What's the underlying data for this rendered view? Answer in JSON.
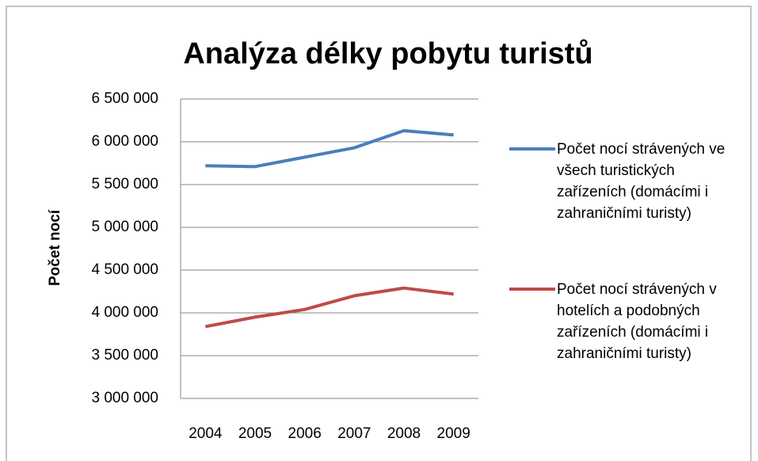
{
  "chart_data": {
    "type": "line",
    "title": "Analýza délky pobytu turistů",
    "y_label": "Počet nocí",
    "categories": [
      "2004",
      "2005",
      "2006",
      "2007",
      "2008",
      "2009"
    ],
    "series": [
      {
        "name": "Počet nocí strávených ve všech turistických zařízeních (domácími i zahraničními turisty)",
        "color": "#4a7ebb",
        "values": [
          5720000,
          5710000,
          5820000,
          5930000,
          6130000,
          6080000
        ]
      },
      {
        "name": "Počet nocí strávených v hotelích a podobných zařízeních (domácími i zahraničními turisty)",
        "color": "#be4b48",
        "values": [
          3840000,
          3950000,
          4040000,
          4200000,
          4290000,
          4220000
        ]
      }
    ],
    "ylim": [
      3000000,
      6500000
    ],
    "yticks": [
      {
        "value": 3000000,
        "label": "3 000 000"
      },
      {
        "value": 3500000,
        "label": "3 500 000"
      },
      {
        "value": 4000000,
        "label": "4 000 000"
      },
      {
        "value": 4500000,
        "label": "4 500 000"
      },
      {
        "value": 5000000,
        "label": "5 000 000"
      },
      {
        "value": 5500000,
        "label": "5 500 000"
      },
      {
        "value": 6000000,
        "label": "6 000 000"
      },
      {
        "value": 6500000,
        "label": "6 500 000"
      }
    ],
    "grid": true,
    "legend": "right"
  }
}
